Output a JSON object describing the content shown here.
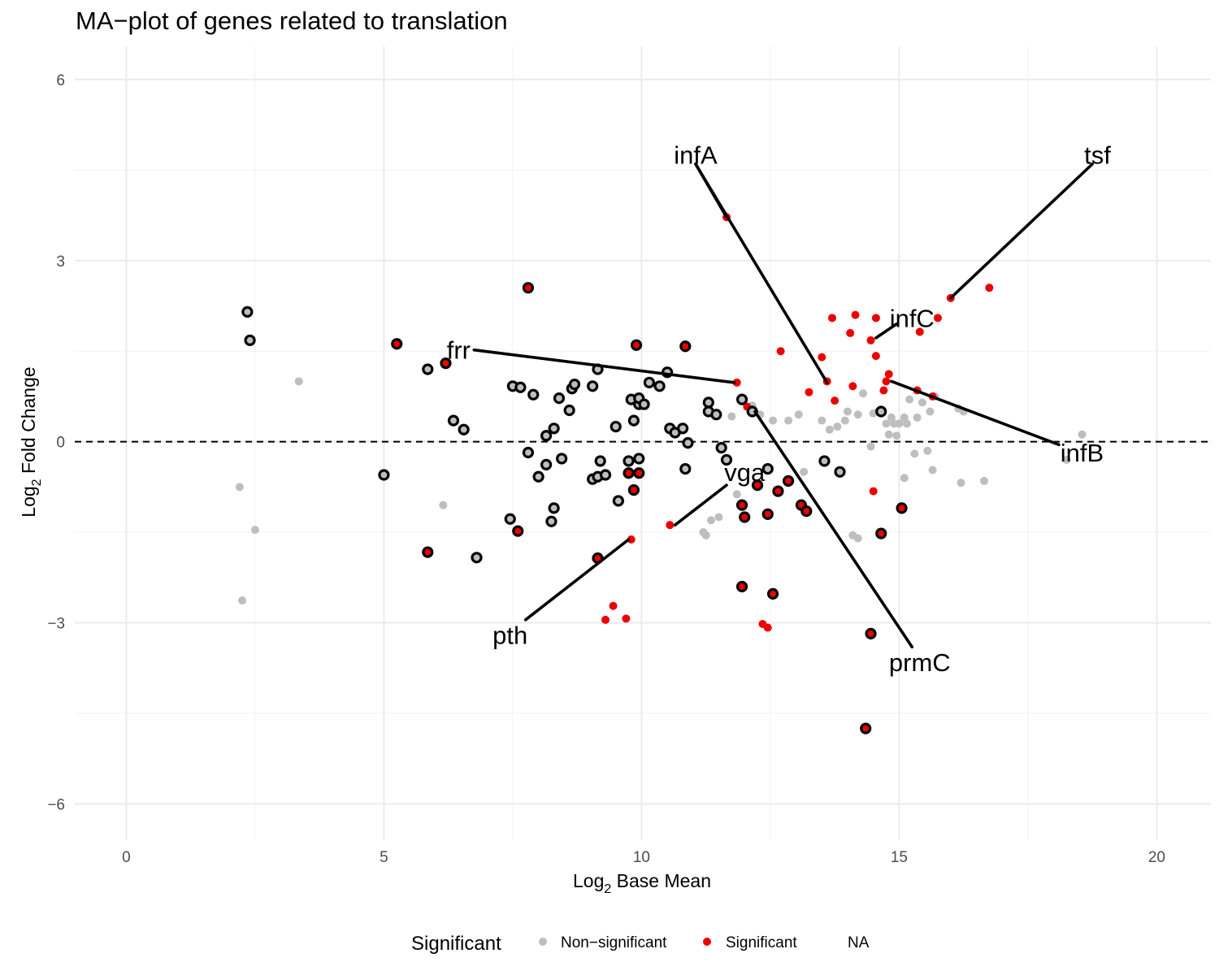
{
  "chart_data": {
    "type": "scatter",
    "title": "MA−plot of genes related to translation",
    "xlabel": {
      "prefix": "Log",
      "sub": "2",
      "suffix": " Base Mean"
    },
    "ylabel": {
      "prefix": "Log",
      "sub": "2",
      "suffix": " Fold Change"
    },
    "xlim": [
      -1.0,
      21.05
    ],
    "ylim": [
      -6.6,
      6.55
    ],
    "x_ticks": [
      {
        "value": 0,
        "label": "0"
      },
      {
        "value": 5,
        "label": "5"
      },
      {
        "value": 10,
        "label": "10"
      },
      {
        "value": 15,
        "label": "15"
      },
      {
        "value": 20,
        "label": "20"
      }
    ],
    "y_ticks": [
      {
        "value": 6,
        "label": "6"
      },
      {
        "value": 3,
        "label": "3"
      },
      {
        "value": 0,
        "label": "0"
      },
      {
        "value": -3,
        "label": "−3"
      },
      {
        "value": -6,
        "label": "−6"
      }
    ],
    "reference_line": {
      "y": 0,
      "style": "dashed"
    },
    "grid": true,
    "legend": {
      "title": "Significant",
      "position": "bottom",
      "items": [
        {
          "label": "Non−significant",
          "color": "#bebebe"
        },
        {
          "label": "Significant",
          "color": "#ee0000"
        },
        {
          "label": "NA",
          "color": "none"
        }
      ]
    },
    "colors": {
      "significant": "#ee0000",
      "nonsignificant": "#bebebe",
      "outline": "#000000",
      "outlined_fill_gray": "#bebebe"
    },
    "series": [
      {
        "name": "Non−significant",
        "color": "#bebebe",
        "points": [
          [
            2.2,
            -0.75
          ],
          [
            2.25,
            -2.63
          ],
          [
            2.5,
            -1.46
          ],
          [
            3.35,
            1.0
          ],
          [
            6.15,
            -1.05
          ],
          [
            11.75,
            0.42
          ],
          [
            11.85,
            -0.87
          ],
          [
            12.15,
            0.6
          ],
          [
            12.3,
            0.45
          ],
          [
            12.55,
            0.35
          ],
          [
            12.85,
            0.35
          ],
          [
            13.05,
            0.45
          ],
          [
            13.15,
            -0.5
          ],
          [
            13.5,
            0.35
          ],
          [
            13.65,
            0.2
          ],
          [
            13.8,
            0.25
          ],
          [
            13.95,
            0.35
          ],
          [
            14.0,
            0.5
          ],
          [
            14.2,
            0.45
          ],
          [
            14.3,
            0.8
          ],
          [
            14.5,
            0.47
          ],
          [
            14.6,
            0.5
          ],
          [
            14.75,
            0.3
          ],
          [
            14.85,
            0.4
          ],
          [
            14.9,
            0.3
          ],
          [
            15.0,
            0.3
          ],
          [
            15.1,
            0.4
          ],
          [
            15.15,
            0.3
          ],
          [
            15.2,
            0.7
          ],
          [
            15.35,
            0.4
          ],
          [
            15.45,
            0.65
          ],
          [
            15.6,
            0.5
          ],
          [
            15.7,
            0.75
          ],
          [
            16.15,
            0.55
          ],
          [
            16.25,
            0.5
          ],
          [
            14.45,
            -0.08
          ],
          [
            14.8,
            0.12
          ],
          [
            14.95,
            0.1
          ],
          [
            15.1,
            -0.6
          ],
          [
            15.3,
            -0.2
          ],
          [
            15.55,
            -0.15
          ],
          [
            15.65,
            -0.47
          ],
          [
            16.2,
            -0.68
          ],
          [
            16.65,
            -0.65
          ],
          [
            18.55,
            0.12
          ],
          [
            18.25,
            -0.3
          ],
          [
            11.2,
            -1.5
          ],
          [
            11.35,
            -1.3
          ],
          [
            11.25,
            -1.55
          ],
          [
            14.1,
            -1.55
          ],
          [
            14.2,
            -1.6
          ],
          [
            11.5,
            -1.25
          ]
        ]
      },
      {
        "name": "Significant",
        "color": "#ee0000",
        "points": [
          [
            11.65,
            3.72
          ],
          [
            13.5,
            1.4
          ],
          [
            12.7,
            1.5
          ],
          [
            13.6,
            1.0
          ],
          [
            13.25,
            0.82
          ],
          [
            13.75,
            0.68
          ],
          [
            13.7,
            2.05
          ],
          [
            14.15,
            2.1
          ],
          [
            14.55,
            2.05
          ],
          [
            14.05,
            1.8
          ],
          [
            14.45,
            1.68
          ],
          [
            14.55,
            1.42
          ],
          [
            14.1,
            0.92
          ],
          [
            14.7,
            0.85
          ],
          [
            14.75,
            1.0
          ],
          [
            14.8,
            1.12
          ],
          [
            15.4,
            1.82
          ],
          [
            15.75,
            2.05
          ],
          [
            16.0,
            2.38
          ],
          [
            16.75,
            2.55
          ],
          [
            15.35,
            0.85
          ],
          [
            15.65,
            0.75
          ],
          [
            14.5,
            -0.82
          ],
          [
            11.85,
            0.98
          ],
          [
            12.05,
            0.58
          ],
          [
            10.55,
            -1.38
          ],
          [
            9.8,
            -1.62
          ],
          [
            9.45,
            -2.72
          ],
          [
            9.3,
            -2.95
          ],
          [
            9.7,
            -2.93
          ],
          [
            12.35,
            -3.02
          ],
          [
            12.45,
            -3.08
          ]
        ]
      },
      {
        "name": "outlined-gray",
        "color": "#bebebe",
        "outline": true,
        "points": [
          [
            2.35,
            2.15
          ],
          [
            2.4,
            1.68
          ],
          [
            5.0,
            -0.55
          ],
          [
            5.85,
            1.2
          ],
          [
            6.35,
            0.35
          ],
          [
            6.55,
            0.2
          ],
          [
            6.8,
            -1.92
          ],
          [
            7.5,
            0.92
          ],
          [
            7.65,
            0.9
          ],
          [
            7.9,
            0.78
          ],
          [
            7.45,
            -1.28
          ],
          [
            7.8,
            -0.18
          ],
          [
            8.0,
            -0.58
          ],
          [
            8.15,
            0.1
          ],
          [
            8.15,
            -0.38
          ],
          [
            8.3,
            0.22
          ],
          [
            8.4,
            0.72
          ],
          [
            8.45,
            -0.28
          ],
          [
            8.6,
            0.52
          ],
          [
            8.65,
            0.88
          ],
          [
            8.7,
            0.95
          ],
          [
            8.3,
            -1.1
          ],
          [
            8.25,
            -1.32
          ],
          [
            9.05,
            0.92
          ],
          [
            9.15,
            1.2
          ],
          [
            9.05,
            -0.62
          ],
          [
            9.15,
            -0.58
          ],
          [
            9.2,
            -0.32
          ],
          [
            9.3,
            -0.55
          ],
          [
            9.5,
            0.25
          ],
          [
            9.55,
            -0.98
          ],
          [
            9.8,
            0.7
          ],
          [
            9.85,
            0.35
          ],
          [
            9.95,
            0.62
          ],
          [
            9.95,
            0.72
          ],
          [
            10.05,
            0.62
          ],
          [
            9.75,
            -0.32
          ],
          [
            9.95,
            -0.28
          ],
          [
            10.15,
            0.98
          ],
          [
            10.35,
            0.92
          ],
          [
            10.5,
            1.15
          ],
          [
            10.55,
            0.22
          ],
          [
            10.65,
            0.15
          ],
          [
            10.8,
            0.22
          ],
          [
            10.85,
            -0.45
          ],
          [
            10.9,
            -0.02
          ],
          [
            11.3,
            0.65
          ],
          [
            11.3,
            0.5
          ],
          [
            11.45,
            0.45
          ],
          [
            11.55,
            -0.1
          ],
          [
            11.65,
            -0.3
          ],
          [
            11.95,
            0.7
          ],
          [
            12.15,
            0.5
          ],
          [
            12.45,
            -0.45
          ],
          [
            13.55,
            -0.32
          ],
          [
            13.85,
            -0.5
          ],
          [
            14.65,
            0.5
          ]
        ]
      },
      {
        "name": "outlined-red",
        "color": "#ee0000",
        "outline": true,
        "points": [
          [
            5.25,
            1.62
          ],
          [
            6.2,
            1.3
          ],
          [
            7.8,
            2.55
          ],
          [
            5.85,
            -1.83
          ],
          [
            7.6,
            -1.48
          ],
          [
            9.9,
            1.6
          ],
          [
            10.85,
            1.58
          ],
          [
            9.75,
            -0.52
          ],
          [
            9.95,
            -0.52
          ],
          [
            9.85,
            -0.8
          ],
          [
            9.15,
            -1.93
          ],
          [
            11.95,
            -1.05
          ],
          [
            12.0,
            -1.25
          ],
          [
            12.25,
            -0.72
          ],
          [
            12.45,
            -1.2
          ],
          [
            12.65,
            -0.82
          ],
          [
            12.85,
            -0.65
          ],
          [
            13.1,
            -1.05
          ],
          [
            13.2,
            -1.15
          ],
          [
            15.05,
            -1.1
          ],
          [
            14.65,
            -1.52
          ],
          [
            11.95,
            -2.4
          ],
          [
            12.55,
            -2.52
          ],
          [
            14.45,
            -3.18
          ],
          [
            14.35,
            -4.75
          ]
        ]
      }
    ],
    "annotations": [
      {
        "text": "infA",
        "point": [
          11.65,
          3.72
        ],
        "label_pos": [
          11.05,
          4.75
        ],
        "seg_end": [
          11.05,
          4.6
        ],
        "anchor": "middle"
      },
      {
        "text": "tsf",
        "point": [
          16.0,
          2.38
        ],
        "label_pos": [
          18.85,
          4.75
        ],
        "seg_end": [
          18.75,
          4.6
        ],
        "anchor": "middle"
      },
      {
        "text": "infC",
        "point": [
          14.55,
          1.72
        ],
        "label_pos": [
          15.25,
          2.05
        ],
        "seg_end": [
          14.95,
          1.95
        ],
        "anchor": "middle"
      },
      {
        "text": "frr",
        "point": [
          11.8,
          0.98
        ],
        "label_pos": [
          6.45,
          1.52
        ],
        "seg_end": [
          6.75,
          1.52
        ],
        "anchor": "middle"
      },
      {
        "text": "infB",
        "point": [
          14.85,
          1.0
        ],
        "label_pos": [
          18.55,
          -0.18
        ],
        "seg_end": [
          18.1,
          -0.05
        ],
        "anchor": "middle"
      },
      {
        "text": "vga",
        "point": [
          10.65,
          -1.38
        ],
        "label_pos": [
          12.0,
          -0.5
        ],
        "seg_end": [
          11.65,
          -0.72
        ],
        "anchor": "middle"
      },
      {
        "text": "pth",
        "point": [
          9.75,
          -1.62
        ],
        "label_pos": [
          7.45,
          -3.2
        ],
        "seg_end": [
          7.75,
          -2.95
        ],
        "anchor": "middle"
      },
      {
        "text": "prmC",
        "point": [
          12.2,
          0.5
        ],
        "label_pos": [
          15.4,
          -3.65
        ],
        "seg_end": [
          15.25,
          -3.4
        ],
        "anchor": "middle"
      },
      {
        "text": "",
        "point": [
          13.6,
          0.98
        ],
        "label_pos": [
          11.05,
          4.6
        ],
        "seg_end": [
          11.05,
          4.6
        ],
        "anchor": "middle",
        "line_only": true
      }
    ]
  }
}
